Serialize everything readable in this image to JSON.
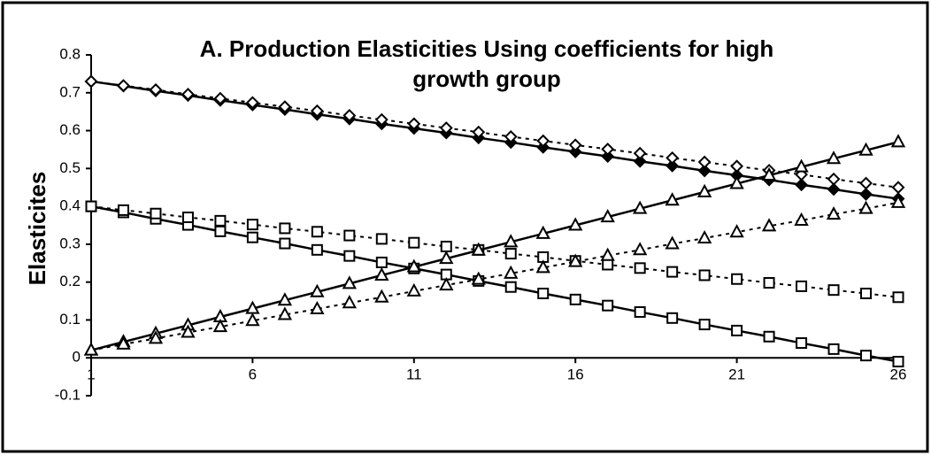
{
  "chart_data": {
    "type": "line",
    "title": "A. Production Elasticities Using coefficients for high growth group",
    "y_label": "Elasticites",
    "x": [
      1,
      2,
      3,
      4,
      5,
      6,
      7,
      8,
      9,
      10,
      11,
      12,
      13,
      14,
      15,
      16,
      17,
      18,
      19,
      20,
      21,
      22,
      23,
      24,
      25,
      26
    ],
    "xlim": [
      1,
      26
    ],
    "xticks": [
      1,
      6,
      11,
      16,
      21,
      26
    ],
    "ylim": [
      -0.1,
      0.8
    ],
    "yticks": [
      -0.1,
      0,
      0.1,
      0.2,
      0.3,
      0.4,
      0.5,
      0.6,
      0.7,
      0.8
    ],
    "grid": false,
    "series": [
      {
        "color": "#000000",
        "marker": "diamond",
        "filled": true,
        "dashed": false,
        "values": [
          0.73,
          0.718,
          0.705,
          0.693,
          0.68,
          0.668,
          0.656,
          0.643,
          0.631,
          0.618,
          0.606,
          0.594,
          0.581,
          0.569,
          0.556,
          0.544,
          0.532,
          0.519,
          0.507,
          0.494,
          0.482,
          0.47,
          0.457,
          0.445,
          0.432,
          0.42
        ]
      },
      {
        "color": "#000000",
        "marker": "diamond",
        "filled": false,
        "dashed": true,
        "values": [
          0.73,
          0.719,
          0.708,
          0.696,
          0.685,
          0.674,
          0.663,
          0.652,
          0.64,
          0.629,
          0.618,
          0.607,
          0.596,
          0.584,
          0.573,
          0.562,
          0.551,
          0.54,
          0.528,
          0.517,
          0.506,
          0.495,
          0.484,
          0.472,
          0.461,
          0.45
        ]
      },
      {
        "color": "#000000",
        "marker": "square",
        "filled": false,
        "dashed": false,
        "values": [
          0.4,
          0.384,
          0.367,
          0.351,
          0.334,
          0.318,
          0.302,
          0.285,
          0.269,
          0.252,
          0.236,
          0.22,
          0.203,
          0.187,
          0.17,
          0.154,
          0.138,
          0.121,
          0.105,
          0.088,
          0.072,
          0.056,
          0.039,
          0.023,
          0.006,
          -0.01
        ]
      },
      {
        "color": "#000000",
        "marker": "square",
        "filled": false,
        "dashed": true,
        "values": [
          0.4,
          0.39,
          0.381,
          0.371,
          0.362,
          0.352,
          0.342,
          0.333,
          0.323,
          0.314,
          0.304,
          0.294,
          0.285,
          0.275,
          0.266,
          0.256,
          0.246,
          0.237,
          0.227,
          0.218,
          0.208,
          0.198,
          0.189,
          0.179,
          0.17,
          0.16
        ]
      },
      {
        "color": "#000000",
        "marker": "triangle",
        "filled": false,
        "dashed": false,
        "values": [
          0.02,
          0.042,
          0.064,
          0.086,
          0.108,
          0.13,
          0.152,
          0.174,
          0.196,
          0.218,
          0.24,
          0.262,
          0.284,
          0.306,
          0.328,
          0.35,
          0.372,
          0.394,
          0.416,
          0.438,
          0.46,
          0.482,
          0.504,
          0.526,
          0.548,
          0.57
        ]
      },
      {
        "color": "#000000",
        "marker": "triangle",
        "filled": false,
        "dashed": true,
        "values": [
          0.02,
          0.036,
          0.051,
          0.067,
          0.082,
          0.098,
          0.114,
          0.129,
          0.145,
          0.16,
          0.176,
          0.192,
          0.207,
          0.223,
          0.238,
          0.254,
          0.27,
          0.285,
          0.301,
          0.316,
          0.332,
          0.348,
          0.363,
          0.379,
          0.394,
          0.41
        ]
      }
    ]
  }
}
